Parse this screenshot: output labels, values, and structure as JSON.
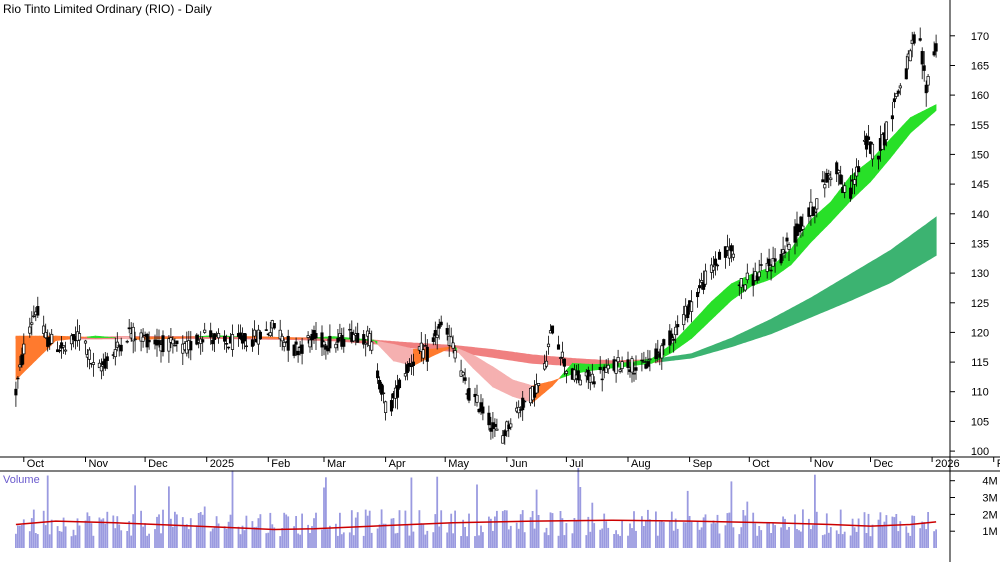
{
  "chart_data": {
    "type": "candlestick",
    "title": "Rio Tinto Limited Ordinary (RIO) - Daily",
    "price_axis": {
      "ylim": [
        99,
        173
      ],
      "ticks": [
        100,
        105,
        110,
        115,
        120,
        125,
        130,
        135,
        140,
        145,
        150,
        155,
        160,
        165,
        170
      ]
    },
    "month_labels": [
      "Oct",
      "Nov",
      "Dec",
      "2025",
      "Feb",
      "Mar",
      "Apr",
      "May",
      "Jun",
      "Jul",
      "Aug",
      "Sep",
      "Oct",
      "Nov",
      "Dec",
      "2026",
      "Feb"
    ],
    "x_range_days": 356,
    "month_start_days": [
      4,
      35,
      65,
      96,
      127,
      155,
      186,
      216,
      247,
      277,
      308,
      339,
      369,
      400,
      430,
      461,
      492
    ],
    "price_path": [
      [
        0,
        110
      ],
      [
        5,
        119
      ],
      [
        10,
        124
      ],
      [
        15,
        119
      ],
      [
        25,
        117
      ],
      [
        33,
        120
      ],
      [
        40,
        113
      ],
      [
        50,
        117
      ],
      [
        57,
        120
      ],
      [
        65,
        119
      ],
      [
        75,
        118
      ],
      [
        85,
        117
      ],
      [
        95,
        120
      ],
      [
        105,
        118
      ],
      [
        120,
        119
      ],
      [
        130,
        121
      ],
      [
        140,
        117
      ],
      [
        150,
        119
      ],
      [
        160,
        118
      ],
      [
        170,
        120
      ],
      [
        178,
        119
      ],
      [
        187,
        106
      ],
      [
        195,
        113
      ],
      [
        203,
        117
      ],
      [
        208,
        116
      ],
      [
        213,
        121
      ],
      [
        220,
        118
      ],
      [
        227,
        110
      ],
      [
        235,
        107
      ],
      [
        240,
        104
      ],
      [
        244,
        102
      ],
      [
        250,
        106
      ],
      [
        258,
        109
      ],
      [
        265,
        112
      ],
      [
        270,
        121
      ],
      [
        278,
        113
      ],
      [
        285,
        112
      ],
      [
        295,
        113
      ],
      [
        305,
        115
      ],
      [
        315,
        114
      ],
      [
        325,
        117
      ],
      [
        335,
        122
      ],
      [
        345,
        128
      ],
      [
        353,
        132
      ],
      [
        360,
        134
      ],
      [
        365,
        128
      ],
      [
        375,
        130
      ],
      [
        385,
        133
      ],
      [
        395,
        138
      ],
      [
        403,
        142
      ],
      [
        408,
        146
      ],
      [
        413,
        148
      ],
      [
        418,
        142
      ],
      [
        423,
        147
      ],
      [
        428,
        152
      ],
      [
        433,
        150
      ],
      [
        438,
        154
      ],
      [
        443,
        160
      ],
      [
        448,
        164
      ],
      [
        452,
        169
      ],
      [
        455,
        168
      ],
      [
        458,
        161
      ],
      [
        461,
        167
      ],
      [
        463,
        168
      ]
    ],
    "ma_short_band": {
      "days": [
        0,
        20,
        40,
        60,
        80,
        100,
        120,
        140,
        160,
        180,
        190,
        200,
        210,
        220,
        230,
        240,
        250,
        260,
        270,
        280,
        290,
        300,
        310,
        320,
        330,
        340,
        350,
        360,
        370,
        380,
        390,
        400,
        410,
        420,
        430,
        440,
        450,
        463
      ],
      "fast": [
        112,
        118.6,
        119.4,
        118.8,
        119.0,
        119.5,
        119.1,
        118.9,
        119.3,
        118.7,
        115.2,
        114.4,
        116.1,
        117.6,
        114.0,
        110.8,
        109.2,
        108.2,
        111.0,
        114.8,
        114.6,
        114.7,
        115.0,
        115.6,
        118.0,
        121.6,
        125.2,
        128.2,
        129.8,
        131.0,
        134.0,
        139.0,
        142.0,
        146.4,
        149.0,
        152.6,
        156.2,
        158.4
      ],
      "slow": [
        119.4,
        119.4,
        119.1,
        119.2,
        119.2,
        119.3,
        119.3,
        119.1,
        119.0,
        118.6,
        118.0,
        117.2,
        117.2,
        117.6,
        116.2,
        114.2,
        112.0,
        111.0,
        111.8,
        113.0,
        113.6,
        114.0,
        114.4,
        114.8,
        116.6,
        119.0,
        122.2,
        125.4,
        127.8,
        129.0,
        131.4,
        135.2,
        138.6,
        142.2,
        145.4,
        149.4,
        153.6,
        157.4
      ]
    },
    "ma_long_band": {
      "days": [
        0,
        20,
        40,
        60,
        80,
        100,
        120,
        140,
        160,
        180,
        200,
        220,
        240,
        260,
        280,
        300,
        320,
        340,
        360,
        380,
        400,
        420,
        440,
        463
      ],
      "upper": [
        119.2,
        119.2,
        119.2,
        119.3,
        119.3,
        119.3,
        119.2,
        119.1,
        119.0,
        118.7,
        118.2,
        117.8,
        117.1,
        116.2,
        115.6,
        115.2,
        115.4,
        116.4,
        119.0,
        122.2,
        125.8,
        129.8,
        133.8,
        139.4
      ],
      "lower": [
        119.0,
        118.9,
        118.9,
        119.0,
        119.0,
        119.0,
        118.9,
        118.8,
        118.6,
        118.1,
        117.4,
        116.8,
        115.8,
        114.8,
        114.4,
        114.6,
        114.9,
        115.7,
        117.6,
        119.8,
        122.6,
        125.4,
        128.4,
        133.0
      ]
    },
    "ma_long_color_change_day": 325,
    "volume": {
      "title": "Volume",
      "ylim": [
        0,
        4.4
      ],
      "ticks": [
        1,
        2,
        3,
        4
      ],
      "tick_labels": [
        "1M",
        "2M",
        "3M",
        "4M"
      ],
      "avg_path": [
        [
          0,
          1.4
        ],
        [
          20,
          1.6
        ],
        [
          50,
          1.5
        ],
        [
          80,
          1.35
        ],
        [
          110,
          1.2
        ],
        [
          130,
          1.1
        ],
        [
          150,
          1.15
        ],
        [
          180,
          1.3
        ],
        [
          220,
          1.5
        ],
        [
          260,
          1.6
        ],
        [
          300,
          1.65
        ],
        [
          340,
          1.6
        ],
        [
          380,
          1.5
        ],
        [
          410,
          1.4
        ],
        [
          430,
          1.3
        ],
        [
          450,
          1.4
        ],
        [
          463,
          1.55
        ]
      ]
    },
    "colors": {
      "background": "#ffffff",
      "candle": "#000000",
      "short_up": "#28e028",
      "short_down": "#ff7a2e",
      "long_up": "#3cb371",
      "long_down": "#f08080",
      "long_down_light": "#f5b0b0",
      "volume_bar": "#9a9ae0",
      "volume_avg": "#cc0000",
      "axis": "#000000"
    }
  }
}
